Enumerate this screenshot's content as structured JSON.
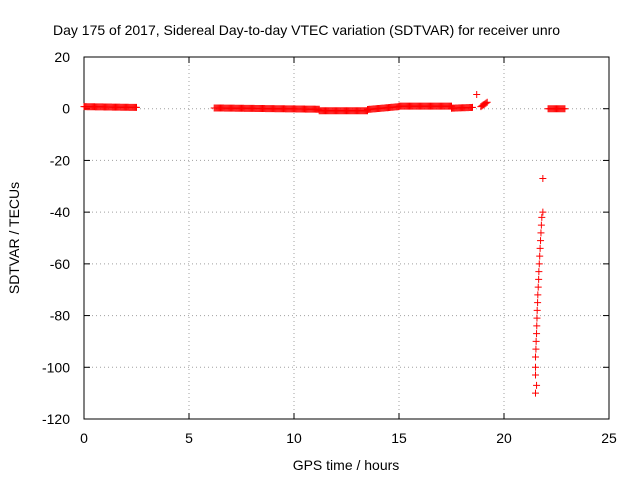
{
  "chart_data": {
    "type": "scatter",
    "title": "Day 175 of 2017, Sidereal Day-to-day VTEC variation (SDTVAR) for receiver unro",
    "xlabel": "GPS time / hours",
    "ylabel": "SDTVAR / TECUs",
    "xlim": [
      0,
      25
    ],
    "ylim": [
      -120,
      20
    ],
    "xticks": [
      0,
      5,
      10,
      15,
      20,
      25
    ],
    "yticks": [
      -120,
      -100,
      -80,
      -60,
      -40,
      -20,
      0,
      20
    ],
    "grid": true,
    "marker": "+",
    "color": "#ff0000",
    "segments": [
      {
        "x_start": 0.0,
        "x_end": 2.5,
        "y_start": 0.8,
        "y_end": 0.5,
        "step": 0.05
      },
      {
        "x_start": 6.2,
        "x_end": 11.2,
        "y_start": 0.3,
        "y_end": -0.2,
        "step": 0.05
      },
      {
        "x_start": 11.2,
        "x_end": 13.5,
        "y_start": -0.8,
        "y_end": -0.8,
        "step": 0.05
      },
      {
        "x_start": 13.5,
        "x_end": 15.0,
        "y_start": -0.3,
        "y_end": 0.8,
        "step": 0.05
      },
      {
        "x_start": 15.0,
        "x_end": 17.5,
        "y_start": 1.0,
        "y_end": 1.0,
        "step": 0.05
      },
      {
        "x_start": 17.5,
        "x_end": 18.5,
        "y_start": 0.2,
        "y_end": 0.5,
        "step": 0.05
      },
      {
        "x_start": 18.9,
        "x_end": 19.2,
        "y_start": 0.8,
        "y_end": 2.5,
        "step": 0.05
      },
      {
        "x_start": 22.1,
        "x_end": 22.9,
        "y_start": 0.0,
        "y_end": 0.0,
        "step": 0.05
      }
    ],
    "points": [
      {
        "x": 18.7,
        "y": 5.5
      },
      {
        "x": 21.85,
        "y": -27
      },
      {
        "x": 21.5,
        "y": -110
      },
      {
        "x": 21.55,
        "y": -107
      },
      {
        "x": 21.5,
        "y": -103
      },
      {
        "x": 21.5,
        "y": -100
      },
      {
        "x": 21.5,
        "y": -96
      },
      {
        "x": 21.52,
        "y": -93
      },
      {
        "x": 21.53,
        "y": -90
      },
      {
        "x": 21.55,
        "y": -87
      },
      {
        "x": 21.56,
        "y": -84
      },
      {
        "x": 21.57,
        "y": -81
      },
      {
        "x": 21.58,
        "y": -78
      },
      {
        "x": 21.6,
        "y": -75
      },
      {
        "x": 21.61,
        "y": -72
      },
      {
        "x": 21.63,
        "y": -69
      },
      {
        "x": 21.65,
        "y": -66
      },
      {
        "x": 21.66,
        "y": -63
      },
      {
        "x": 21.68,
        "y": -60
      },
      {
        "x": 21.7,
        "y": -57
      },
      {
        "x": 21.72,
        "y": -54
      },
      {
        "x": 21.74,
        "y": -51
      },
      {
        "x": 21.76,
        "y": -48
      },
      {
        "x": 21.78,
        "y": -45
      },
      {
        "x": 21.8,
        "y": -42
      },
      {
        "x": 21.85,
        "y": -40
      }
    ]
  }
}
